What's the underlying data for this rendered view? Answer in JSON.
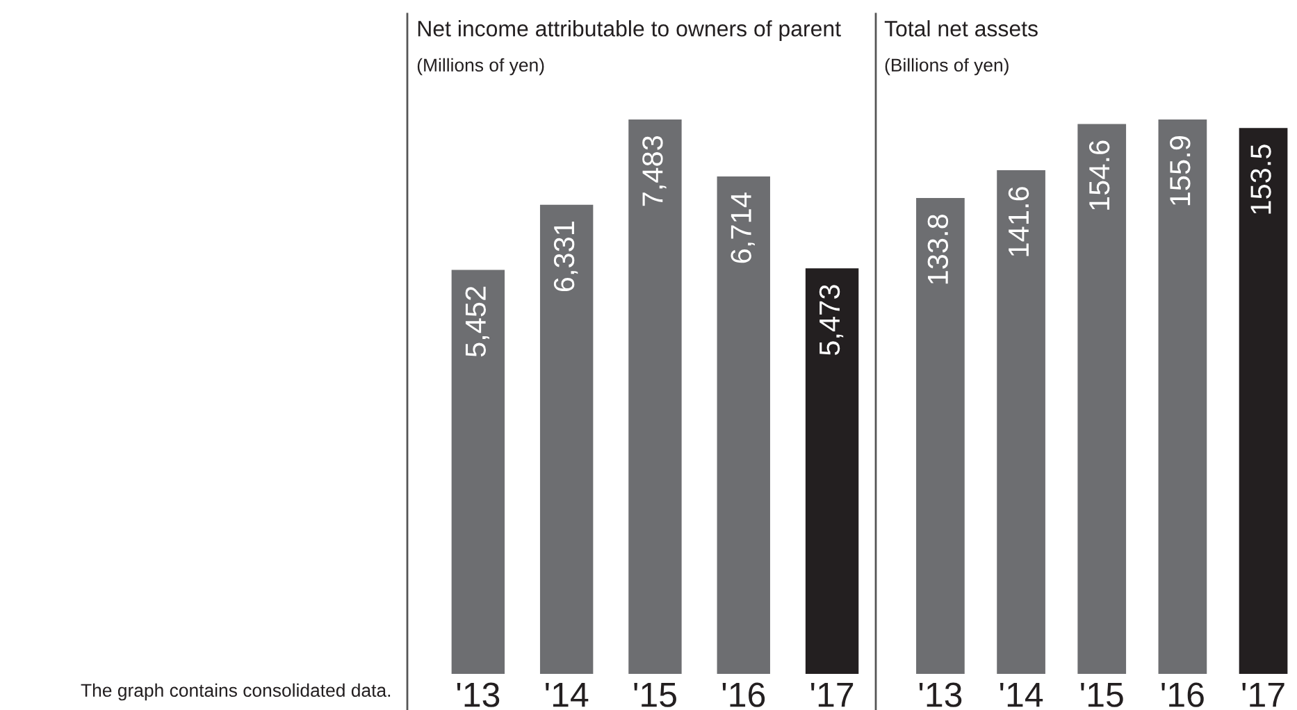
{
  "chart_data": [
    {
      "type": "bar",
      "title": "Net income attributable to owners of parent",
      "subtitle": "(Millions of yen)",
      "categories": [
        "'13",
        "'14",
        "'15",
        "'16",
        "'17"
      ],
      "values": [
        5452,
        6331,
        7483,
        6714,
        5473
      ],
      "value_labels": [
        "5,452",
        "6,331",
        "7,483",
        "6,714",
        "5,473"
      ],
      "colors": [
        "#6d6e71",
        "#6d6e71",
        "#6d6e71",
        "#6d6e71",
        "#231f20"
      ],
      "tick_labels": "x",
      "annotations": [
        "The graph contains consolidated data."
      ]
    },
    {
      "type": "bar",
      "title": "Total net assets",
      "subtitle": "(Billions of yen)",
      "categories": [
        "'13",
        "'14",
        "'15",
        "'16",
        "'17"
      ],
      "values": [
        133.8,
        141.6,
        154.6,
        155.9,
        153.5
      ],
      "data_labels": true,
      "colors": [
        "#6d6e71",
        "#6d6e71",
        "#6d6e71",
        "#6d6e71",
        "#231f20"
      ],
      "tick_labels": "x"
    }
  ]
}
